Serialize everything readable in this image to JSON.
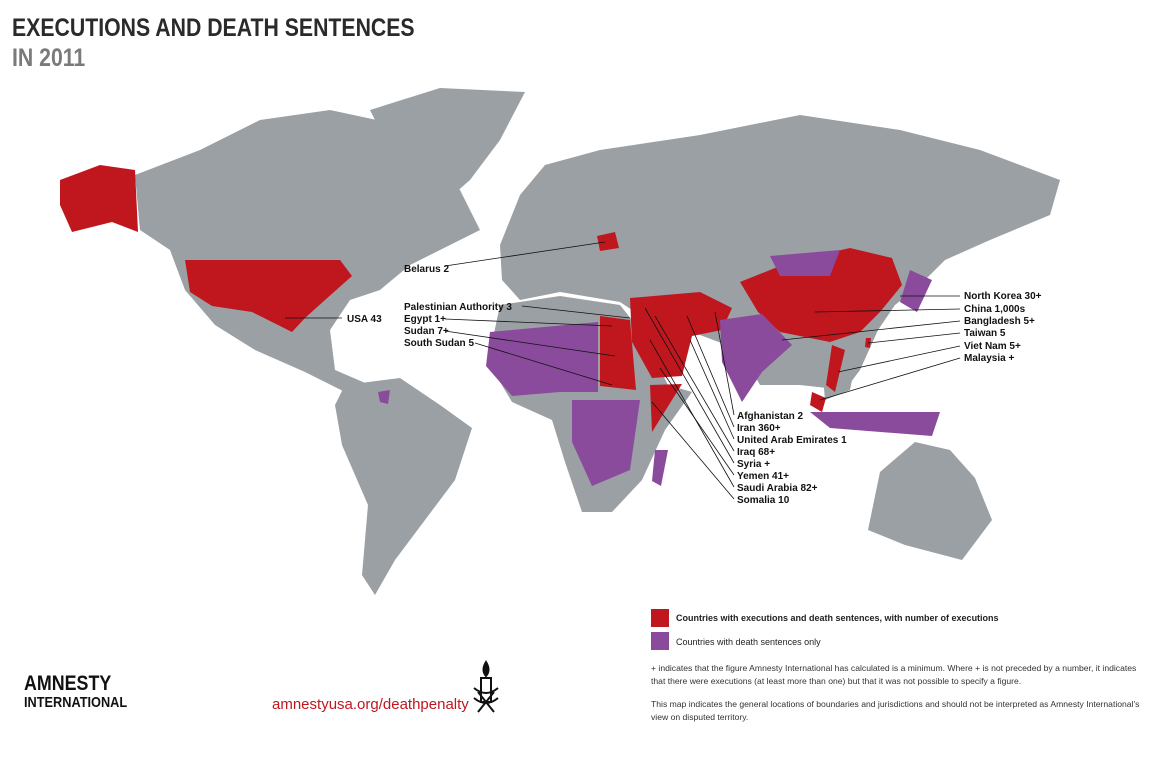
{
  "title": {
    "line1": "EXECUTIONS AND DEATH SENTENCES",
    "line2": "IN 2011"
  },
  "colors": {
    "land": "#9ba0a4",
    "executions": "#c0171f",
    "death_sentences_only": "#8a4b9d"
  },
  "labels": {
    "belarus": "Belarus 2",
    "usa": "USA 43",
    "palestinian_authority": "Palestinian Authority 3",
    "egypt": "Egypt 1+",
    "sudan": "Sudan 7+",
    "south_sudan": "South Sudan 5",
    "north_korea": "North Korea 30+",
    "china": "China 1,000s",
    "bangladesh": "Bangladesh 5+",
    "taiwan": "Taiwan 5",
    "viet_nam": "Viet Nam 5+",
    "malaysia": "Malaysia +",
    "afghanistan": "Afghanistan 2",
    "iran": "Iran 360+",
    "uae": "United Arab Emirates 1",
    "iraq": "Iraq 68+",
    "syria": "Syria +",
    "yemen": "Yemen 41+",
    "saudi_arabia": "Saudi Arabia 82+",
    "somalia": "Somalia 10"
  },
  "legend": {
    "executions": "Countries with executions and death sentences, with number of executions",
    "death_sentences_only": "Countries with death sentences only"
  },
  "notes": {
    "plus": "+ indicates that the figure Amnesty International has calculated is a minimum. Where + is not preceded by a number, it indicates that there were executions (at least more than one) but that it was not possible to specify a figure.",
    "disclaimer": "This map indicates the general locations of boundaries and jurisdictions and should not be interpreted as Amnesty International's view on disputed territory."
  },
  "footer": {
    "logo_line1": "AMNESTY",
    "logo_line2": "INTERNATIONAL",
    "url": "amnestyusa.org/deathpenalty"
  }
}
